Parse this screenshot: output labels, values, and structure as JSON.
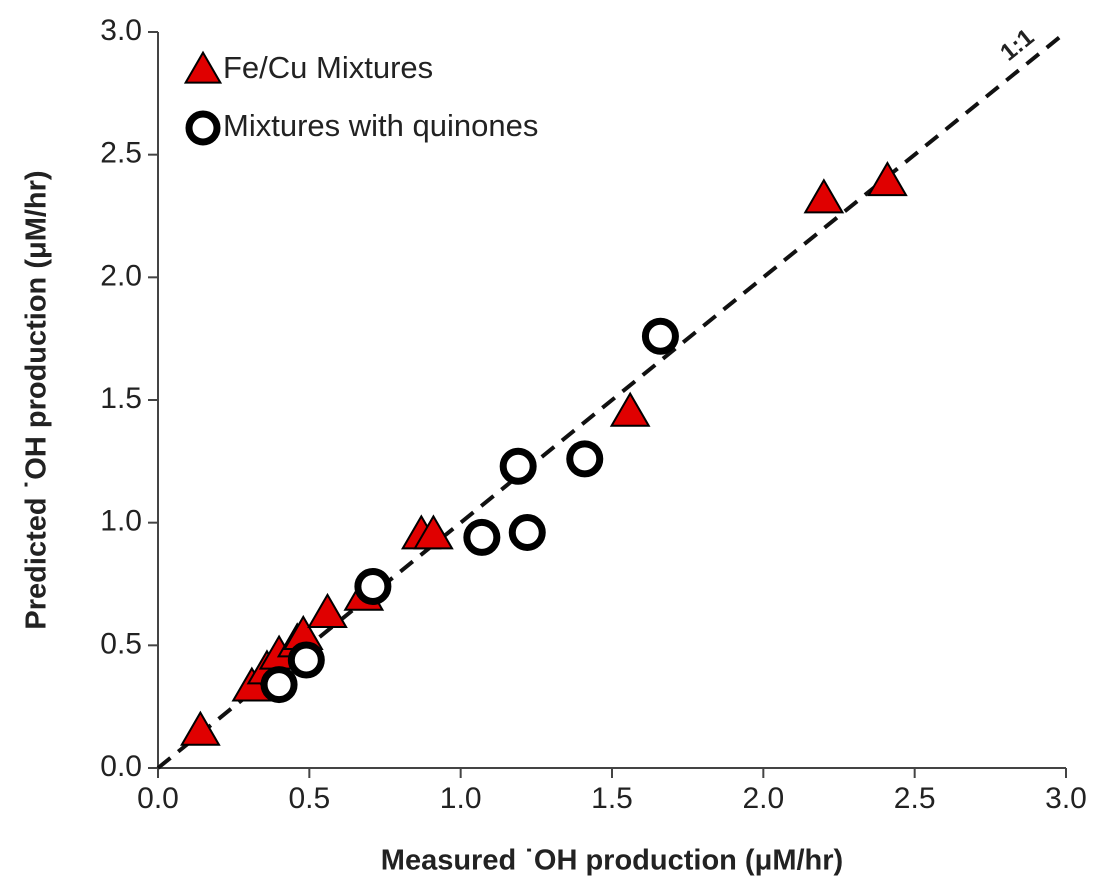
{
  "chart_data": {
    "type": "scatter",
    "x_label": "Measured ˙OH production (μM/hr)",
    "y_label": "Predicted ˙OH production (μM/hr)",
    "reference_line_label": "1:1",
    "legend": "upper left",
    "xlim": [
      0,
      3
    ],
    "ylim": [
      0,
      3
    ],
    "xticks": [
      {
        "value": 0,
        "label": "0.0"
      },
      {
        "value": 0.5,
        "label": "0.5"
      },
      {
        "value": 1,
        "label": "1.0"
      },
      {
        "value": 1.5,
        "label": "1.5"
      },
      {
        "value": 2,
        "label": "2.0"
      },
      {
        "value": 2.5,
        "label": "2.5"
      },
      {
        "value": 3,
        "label": "3.0"
      }
    ],
    "yticks": [
      {
        "value": 0,
        "label": "0.0"
      },
      {
        "value": 0.5,
        "label": "0.5"
      },
      {
        "value": 1,
        "label": "1.0"
      },
      {
        "value": 1.5,
        "label": "1.5"
      },
      {
        "value": 2,
        "label": "2.0"
      },
      {
        "value": 2.5,
        "label": "2.5"
      },
      {
        "value": 3,
        "label": "3.0"
      }
    ],
    "series": [
      {
        "name": "Fe/Cu Mixtures",
        "marker": "triangle",
        "color": "#e00000",
        "x": [
          0.14,
          0.31,
          0.36,
          0.4,
          0.46,
          0.48,
          0.56,
          0.68,
          0.87,
          0.91,
          1.56,
          2.2,
          2.41
        ],
        "values": [
          0.15,
          0.33,
          0.4,
          0.46,
          0.51,
          0.54,
          0.63,
          0.7,
          0.95,
          0.95,
          1.45,
          2.32,
          2.39
        ]
      },
      {
        "name": "Mixtures with quinones",
        "marker": "circle",
        "color": "#000000",
        "x": [
          0.4,
          0.49,
          0.71,
          1.07,
          1.22,
          1.19,
          1.41,
          1.66
        ],
        "values": [
          0.34,
          0.44,
          0.74,
          0.94,
          0.96,
          1.23,
          1.26,
          1.76
        ]
      }
    ]
  }
}
